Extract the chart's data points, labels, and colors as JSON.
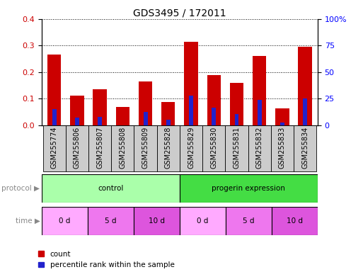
{
  "title": "GDS3495 / 172011",
  "samples": [
    "GSM255774",
    "GSM255806",
    "GSM255807",
    "GSM255808",
    "GSM255809",
    "GSM255828",
    "GSM255829",
    "GSM255830",
    "GSM255831",
    "GSM255832",
    "GSM255833",
    "GSM255834"
  ],
  "red_values": [
    0.265,
    0.112,
    0.135,
    0.068,
    0.165,
    0.088,
    0.315,
    0.188,
    0.158,
    0.262,
    0.062,
    0.295
  ],
  "blue_values": [
    0.06,
    0.028,
    0.032,
    0.0,
    0.05,
    0.02,
    0.112,
    0.065,
    0.042,
    0.095,
    0.01,
    0.1
  ],
  "ylim": [
    0,
    0.4
  ],
  "y2lim": [
    0,
    100
  ],
  "yticks": [
    0.0,
    0.1,
    0.2,
    0.3,
    0.4
  ],
  "y2ticks": [
    0,
    25,
    50,
    75,
    100
  ],
  "y2ticklabels": [
    "0",
    "25",
    "50",
    "75",
    "100%"
  ],
  "red_color": "#cc0000",
  "blue_color": "#2222cc",
  "protocol_control_color": "#aaffaa",
  "protocol_progerin_color": "#44dd44",
  "protocol_groups": [
    {
      "label": "control",
      "start": 0,
      "end": 6
    },
    {
      "label": "progerin expression",
      "start": 6,
      "end": 12
    }
  ],
  "time_groups": [
    {
      "label": "0 d",
      "start": 0,
      "end": 2,
      "color": "#ffaaff"
    },
    {
      "label": "5 d",
      "start": 2,
      "end": 4,
      "color": "#ee77ee"
    },
    {
      "label": "10 d",
      "start": 4,
      "end": 6,
      "color": "#dd55dd"
    },
    {
      "label": "0 d",
      "start": 6,
      "end": 8,
      "color": "#ffaaff"
    },
    {
      "label": "5 d",
      "start": 8,
      "end": 10,
      "color": "#ee77ee"
    },
    {
      "label": "10 d",
      "start": 10,
      "end": 12,
      "color": "#dd55dd"
    }
  ],
  "tick_bg_color": "#cccccc",
  "title_fontsize": 10,
  "label_fontsize": 7.5,
  "tick_fontsize": 7
}
